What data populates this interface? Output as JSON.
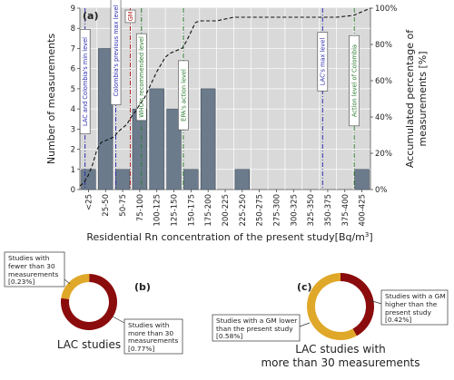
{
  "chart_data": [
    {
      "type": "bar",
      "panel_label": "(a)",
      "xlabel": "Residential Rn concentration of the present study[Bq/m",
      "xlabel_sup": "3",
      "xlabel_end": "]",
      "ylabel": "Number of measurements",
      "y2label_line1": "Accumulated percentage of",
      "y2label_line2": "measurements [%]",
      "ylim": [
        0,
        9
      ],
      "y2lim": [
        0,
        100
      ],
      "yticks": [
        0,
        1,
        2,
        3,
        4,
        5,
        6,
        7,
        8,
        9
      ],
      "y2ticks": [
        "0%",
        "20%",
        "40%",
        "60%",
        "80%",
        "100%"
      ],
      "grid": true,
      "categories": [
        "<25",
        "25-50",
        "50-75",
        "75-100",
        "100-125",
        "125-150",
        "150-175",
        "175-200",
        "200-225",
        "225-250",
        "250-275",
        "275-300",
        "300-325",
        "325-350",
        "350-375",
        "375-400",
        "400-425"
      ],
      "series": [
        {
          "type": "bar",
          "values": [
            1,
            7,
            1,
            4,
            5,
            4,
            1,
            5,
            0,
            1,
            0,
            0,
            0,
            0,
            0,
            0,
            1
          ],
          "color": "#6b7b8c"
        },
        {
          "type": "line",
          "axis": "right",
          "style": "dashed",
          "x": [
            0,
            0.25,
            0.5,
            0.75,
            1,
            1.25,
            1.5,
            1.75,
            2,
            2.25,
            2.5,
            2.75,
            3,
            3.25,
            3.5,
            3.75,
            4,
            4.25,
            4.5,
            4.75,
            5,
            5.25,
            5.5,
            5.75,
            6,
            6.25,
            6.5,
            6.75,
            7,
            7.25,
            7.5,
            7.75,
            8,
            9,
            10,
            11,
            12,
            13,
            14,
            15,
            16,
            17
          ],
          "values": [
            2,
            4,
            8,
            14,
            22,
            26,
            27,
            28,
            29,
            32,
            34,
            36,
            40,
            43,
            47,
            50,
            55,
            60,
            65,
            69,
            73,
            75,
            76,
            77,
            78,
            82,
            87,
            92,
            93,
            93,
            93,
            93,
            93,
            95,
            95,
            95,
            95,
            95,
            95,
            95,
            96,
            100
          ]
        }
      ],
      "reference_lines": [
        {
          "x": 0.3,
          "label": "LAC and Colombia's min level",
          "color": "#3030b0"
        },
        {
          "x": 2.1,
          "label": "Colombia's previous max level",
          "color": "#3030b0"
        },
        {
          "x": 2.95,
          "label": "GM",
          "color": "#b02020"
        },
        {
          "x": 3.6,
          "label": "WHO's recommended level",
          "color": "#2e7d32"
        },
        {
          "x": 6.05,
          "label": "EPA's action level",
          "color": "#2e7d32"
        },
        {
          "x": 14.2,
          "label": "LAC's max level",
          "color": "#3030b0"
        },
        {
          "x": 16.05,
          "label": "Action level of Colombia",
          "color": "#2e7d32"
        }
      ]
    },
    {
      "type": "pie",
      "panel_label": "(b)",
      "title": "LAC studies",
      "slices": [
        {
          "label_lines": [
            "Studies with",
            "fewer than 30",
            "measurements",
            "[0.23%]"
          ],
          "value": 0.23,
          "color": "#e0a828"
        },
        {
          "label_lines": [
            "Studies with",
            "more than 30",
            "measurements",
            "[0.77%]"
          ],
          "value": 0.77,
          "color": "#8b0c0c"
        }
      ]
    },
    {
      "type": "pie",
      "panel_label": "(c)",
      "title_line1": "LAC studies with",
      "title_line2": "more than 30 measurements",
      "slices": [
        {
          "label_lines": [
            "Studies with a GM",
            "higher than the",
            "present study",
            "[0.42%]"
          ],
          "value": 0.42,
          "color": "#8b0c0c"
        },
        {
          "label_lines": [
            "Studies with a GM lower",
            "than the present study",
            "[0.58%]"
          ],
          "value": 0.58,
          "color": "#e0a828"
        }
      ]
    }
  ]
}
